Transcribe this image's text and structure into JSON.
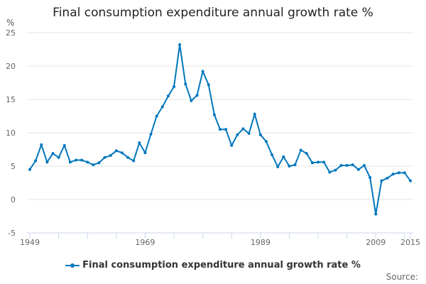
{
  "chart_data": {
    "type": "line",
    "title": "Final consumption expenditure annual growth rate %",
    "ylabel": "%",
    "xlabel": "",
    "ylim": [
      -5,
      25
    ],
    "yticks": [
      -5,
      0,
      5,
      10,
      15,
      20,
      25
    ],
    "xlim": [
      1949,
      2015
    ],
    "xtick_labels": [
      1949,
      1969,
      1989,
      2009,
      2015
    ],
    "grid": "horizontal",
    "legend": "bottom",
    "color": "#0077bd",
    "source_label": "Source:",
    "series": [
      {
        "name": "Final consumption expenditure annual growth rate %",
        "x": [
          1949,
          1950,
          1951,
          1952,
          1953,
          1954,
          1955,
          1956,
          1957,
          1958,
          1959,
          1960,
          1961,
          1962,
          1963,
          1964,
          1965,
          1966,
          1967,
          1968,
          1969,
          1970,
          1971,
          1972,
          1973,
          1974,
          1975,
          1976,
          1977,
          1978,
          1979,
          1980,
          1981,
          1982,
          1983,
          1984,
          1985,
          1986,
          1987,
          1988,
          1989,
          1990,
          1991,
          1992,
          1993,
          1994,
          1995,
          1996,
          1997,
          1998,
          1999,
          2000,
          2001,
          2002,
          2003,
          2004,
          2005,
          2006,
          2007,
          2008,
          2009,
          2010,
          2011,
          2012,
          2013,
          2014,
          2015
        ],
        "values": [
          4.5,
          5.8,
          8.2,
          5.6,
          6.9,
          6.3,
          8.1,
          5.6,
          5.9,
          5.9,
          5.6,
          5.2,
          5.5,
          6.3,
          6.6,
          7.3,
          7.0,
          6.3,
          5.8,
          8.5,
          7.0,
          9.8,
          12.5,
          13.9,
          15.5,
          16.9,
          23.2,
          17.3,
          14.8,
          15.6,
          19.2,
          17.2,
          12.7,
          10.5,
          10.5,
          8.1,
          9.7,
          10.6,
          9.9,
          12.8,
          9.7,
          8.7,
          6.7,
          4.9,
          6.4,
          5.0,
          5.2,
          7.4,
          6.9,
          5.5,
          5.6,
          5.6,
          4.1,
          4.4,
          5.1,
          5.1,
          5.2,
          4.5,
          5.1,
          3.3,
          -2.2,
          2.8,
          3.2,
          3.8,
          4.0,
          4.0,
          2.8
        ]
      }
    ]
  }
}
